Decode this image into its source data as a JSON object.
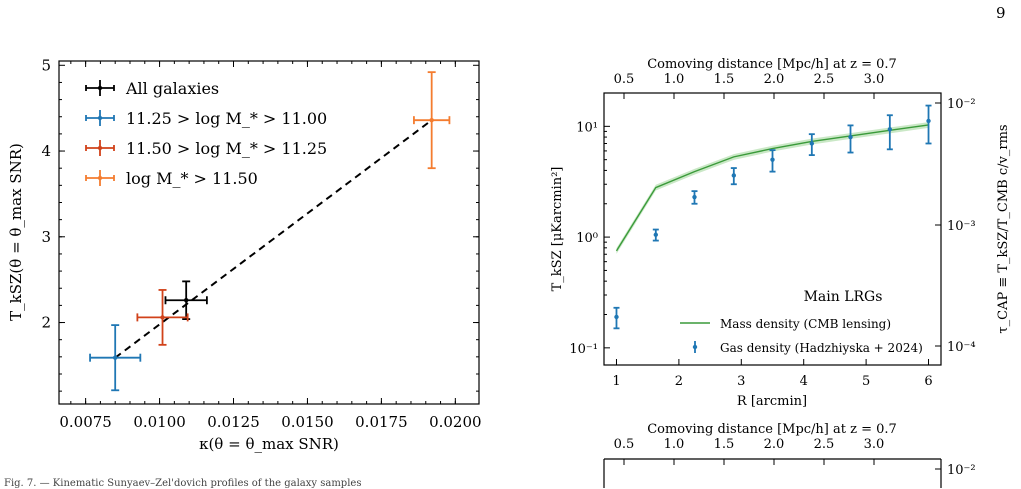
{
  "page_number": "9",
  "caption_fragment": "Fig. 7. — Kinematic Sunyaev–Zel'dovich profiles of the galaxy samples",
  "chart_data": [
    {
      "type": "scatter",
      "xlabel": "κ(θ = θ_max SNR)",
      "ylabel": "T_kSZ(θ = θ_max SNR)",
      "xlim": [
        0.0066,
        0.0208
      ],
      "ylim": [
        1.05,
        5.05
      ],
      "x_ticks": [
        0.0075,
        0.01,
        0.0125,
        0.015,
        0.0175,
        0.02
      ],
      "x_tick_labels": [
        "0.0075",
        "0.0100",
        "0.0125",
        "0.0150",
        "0.0175",
        "0.0200"
      ],
      "y_ticks": [
        2,
        3,
        4,
        5
      ],
      "y_tick_labels": [
        "2",
        "3",
        "4",
        "5"
      ],
      "grid": false,
      "legend_position": "top-left",
      "series": [
        {
          "name": "All galaxies",
          "color": "#000000",
          "x": 0.0109,
          "y": 2.26,
          "xerr": 0.0007,
          "yerr": 0.22
        },
        {
          "name": "11.25 > log M_* > 11.00",
          "color": "#1f77b4",
          "x": 0.0085,
          "y": 1.59,
          "xerr": 0.00085,
          "yerr": 0.38
        },
        {
          "name": "11.50 > log M_* > 11.25",
          "color": "#d1421a",
          "x": 0.0101,
          "y": 2.06,
          "xerr": 0.00085,
          "yerr": 0.32
        },
        {
          "name": "log M_* > 11.50",
          "color": "#f47c2f",
          "x": 0.0192,
          "y": 4.36,
          "xerr": 0.0006,
          "yerr": 0.56
        }
      ],
      "fit_line": {
        "style": "dashed",
        "color": "#000000",
        "x": [
          0.0085,
          0.0192
        ],
        "y": [
          1.59,
          4.36
        ]
      }
    },
    {
      "type": "line",
      "annotation": "Main LRGs",
      "xlabel": "R [arcmin]",
      "ylabel": "T_kSZ [μKarcmin²]",
      "right_ylabel": "τ_CAP ≡ T_kSZ/T_CMB c/v_rms",
      "top_xlabel": "Comoving distance [Mpc/h] at z = 0.7",
      "xlim": [
        0.8,
        6.2
      ],
      "ylim": [
        0.07,
        20
      ],
      "yscale": "log",
      "x_ticks": [
        1,
        2,
        3,
        4,
        5,
        6
      ],
      "x_tick_labels": [
        "1",
        "2",
        "3",
        "4",
        "5",
        "6"
      ],
      "y_ticks": [
        0.1,
        1,
        10
      ],
      "y_tick_labels": [
        "10⁻¹",
        "10⁰",
        "10¹"
      ],
      "right_ticks": [
        "10⁻²",
        "10⁻³",
        "10⁻⁴"
      ],
      "top_ticks": [
        "0.5",
        "1.0",
        "1.5",
        "2.0",
        "2.5",
        "3.0"
      ],
      "legend_position": "bottom-right",
      "series": [
        {
          "name": "Mass density (CMB lensing)",
          "style": "line",
          "color": "#3a9a3a",
          "x": [
            1.0,
            1.63,
            2.25,
            2.88,
            3.5,
            4.13,
            4.75,
            5.38,
            6.0
          ],
          "y": [
            0.75,
            2.8,
            3.9,
            5.3,
            6.3,
            7.3,
            8.2,
            9.2,
            10.3
          ]
        },
        {
          "name": "Gas density (Hadzhiyska + 2024)",
          "style": "errorbar",
          "color": "#1f77b4",
          "x": [
            1.0,
            1.63,
            2.25,
            2.88,
            3.5,
            4.13,
            4.75,
            5.38,
            6.0
          ],
          "y": [
            0.19,
            1.05,
            2.3,
            3.6,
            5.0,
            7.0,
            8.0,
            9.4,
            11.2
          ],
          "yerr": [
            0.04,
            0.12,
            0.3,
            0.6,
            1.1,
            1.5,
            2.2,
            3.2,
            4.2
          ]
        }
      ]
    },
    {
      "type": "line",
      "top_xlabel": "Comoving distance [Mpc/h] at z = 0.7",
      "top_ticks": [
        "0.5",
        "1.0",
        "1.5",
        "2.0",
        "2.5",
        "3.0"
      ],
      "right_ticks": [
        "10⁻²"
      ]
    }
  ]
}
